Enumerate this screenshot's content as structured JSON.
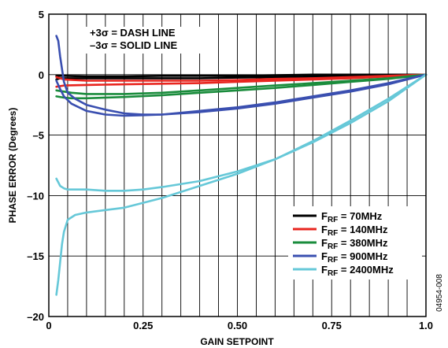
{
  "chart_data": {
    "type": "line",
    "xlabel": "GAIN SETPOINT",
    "ylabel": "PHASE ERROR (Degrees)",
    "xlim": [
      0,
      1.0
    ],
    "ylim": [
      -20,
      5
    ],
    "x_ticks": [
      {
        "v": 0,
        "label": "0"
      },
      {
        "v": 0.25,
        "label": "0.25"
      },
      {
        "v": 0.5,
        "label": "0.50"
      },
      {
        "v": 0.75,
        "label": "0.75"
      },
      {
        "v": 1.0,
        "label": "1.0"
      }
    ],
    "y_ticks": [
      {
        "v": 5,
        "label": "5"
      },
      {
        "v": 0,
        "label": "0"
      },
      {
        "v": -5,
        "label": "–5"
      },
      {
        "v": -10,
        "label": "–10"
      },
      {
        "v": -15,
        "label": "–15"
      },
      {
        "v": -20,
        "label": "–20"
      }
    ],
    "grid": true,
    "grid_x_step": 0.05,
    "grid_y_step": 5,
    "annotations": [
      "+3σ = DASH LINE",
      "–3σ = SOLID LINE"
    ],
    "legend_position": "lower-right",
    "figure_id": "04954-008",
    "series": [
      {
        "name": "F",
        "sub": "RF",
        "suffix": " = 70MHz",
        "color": "#000000",
        "curves": [
          {
            "x": [
              0.02,
              0.04,
              0.1,
              0.2,
              0.3,
              0.4,
              0.5,
              0.6,
              0.7,
              0.8,
              0.9,
              1.0
            ],
            "y": [
              -0.1,
              -0.1,
              -0.15,
              -0.15,
              -0.1,
              -0.1,
              -0.1,
              -0.05,
              0,
              0,
              0,
              0
            ]
          },
          {
            "x": [
              0.02,
              0.03,
              0.05,
              0.1,
              0.2,
              0.3,
              0.4,
              0.5,
              0.6,
              0.7,
              0.8,
              0.9,
              1.0
            ],
            "y": [
              -0.4,
              -0.3,
              -0.3,
              -0.3,
              -0.3,
              -0.3,
              -0.3,
              -0.25,
              -0.2,
              -0.15,
              -0.1,
              -0.05,
              0
            ]
          }
        ]
      },
      {
        "name": "F",
        "sub": "RF",
        "suffix": " = 140MHz",
        "color": "#e8251f",
        "curves": [
          {
            "x": [
              0.02,
              0.04,
              0.1,
              0.2,
              0.3,
              0.4,
              0.5,
              0.6,
              0.7,
              0.8,
              0.9,
              1.0
            ],
            "y": [
              -0.2,
              -0.4,
              -0.5,
              -0.5,
              -0.5,
              -0.5,
              -0.45,
              -0.35,
              -0.3,
              -0.2,
              -0.1,
              0
            ]
          },
          {
            "x": [
              0.02,
              0.04,
              0.1,
              0.2,
              0.3,
              0.4,
              0.5,
              0.6,
              0.7,
              0.8,
              0.9,
              1.0
            ],
            "y": [
              -1.0,
              -0.9,
              -0.85,
              -0.8,
              -0.75,
              -0.7,
              -0.6,
              -0.5,
              -0.4,
              -0.3,
              -0.15,
              0
            ]
          }
        ]
      },
      {
        "name": "F",
        "sub": "RF",
        "suffix": " = 380MHz",
        "color": "#1a8c3c",
        "curves": [
          {
            "x": [
              0.02,
              0.04,
              0.06,
              0.1,
              0.2,
              0.3,
              0.4,
              0.5,
              0.6,
              0.7,
              0.8,
              0.9,
              1.0
            ],
            "y": [
              -1.3,
              -1.4,
              -1.5,
              -1.6,
              -1.6,
              -1.5,
              -1.3,
              -1.1,
              -0.9,
              -0.7,
              -0.5,
              -0.3,
              0
            ]
          },
          {
            "x": [
              0.02,
              0.04,
              0.06,
              0.1,
              0.2,
              0.3,
              0.4,
              0.5,
              0.6,
              0.7,
              0.8,
              0.9,
              1.0
            ],
            "y": [
              -1.8,
              -1.9,
              -1.95,
              -1.95,
              -1.85,
              -1.7,
              -1.5,
              -1.3,
              -1.1,
              -0.85,
              -0.6,
              -0.35,
              0
            ]
          }
        ]
      },
      {
        "name": "F",
        "sub": "RF",
        "suffix": " = 900MHz",
        "color": "#3a4fb0",
        "curves": [
          {
            "x": [
              0.02,
              0.025,
              0.03,
              0.04,
              0.05,
              0.07,
              0.1,
              0.15,
              0.2,
              0.25,
              0.3,
              0.4,
              0.5,
              0.6,
              0.7,
              0.8,
              0.9,
              1.0
            ],
            "y": [
              3.2,
              2.8,
              1.5,
              -0.6,
              -1.5,
              -2.0,
              -2.5,
              -2.9,
              -3.2,
              -3.3,
              -3.3,
              -3.1,
              -2.8,
              -2.4,
              -1.9,
              -1.4,
              -0.8,
              0
            ]
          },
          {
            "x": [
              0.02,
              0.03,
              0.04,
              0.06,
              0.1,
              0.15,
              0.2,
              0.25,
              0.3,
              0.4,
              0.5,
              0.6,
              0.7,
              0.8,
              0.9,
              1.0
            ],
            "y": [
              -0.5,
              -1.2,
              -1.8,
              -2.4,
              -3.0,
              -3.3,
              -3.4,
              -3.35,
              -3.3,
              -3.0,
              -2.7,
              -2.3,
              -1.8,
              -1.3,
              -0.7,
              0
            ]
          }
        ]
      },
      {
        "name": "F",
        "sub": "RF",
        "suffix": " = 2400MHz",
        "color": "#66c8d8",
        "curves": [
          {
            "x": [
              0.02,
              0.03,
              0.04,
              0.05,
              0.07,
              0.1,
              0.15,
              0.2,
              0.25,
              0.3,
              0.4,
              0.5,
              0.6,
              0.7,
              0.8,
              0.9,
              1.0
            ],
            "y": [
              -8.6,
              -9.2,
              -9.4,
              -9.5,
              -9.5,
              -9.5,
              -9.6,
              -9.6,
              -9.5,
              -9.3,
              -8.8,
              -8.0,
              -7.0,
              -5.6,
              -4.0,
              -2.2,
              0
            ]
          },
          {
            "x": [
              0.02,
              0.025,
              0.03,
              0.035,
              0.04,
              0.05,
              0.07,
              0.1,
              0.15,
              0.2,
              0.25,
              0.3,
              0.4,
              0.5,
              0.6,
              0.7,
              0.8,
              0.9,
              1.0
            ],
            "y": [
              -18.2,
              -17.0,
              -15.5,
              -14.0,
              -13.0,
              -12.0,
              -11.6,
              -11.4,
              -11.2,
              -11.0,
              -10.6,
              -10.2,
              -9.2,
              -8.2,
              -7.0,
              -5.5,
              -3.8,
              -2.0,
              0
            ]
          }
        ]
      }
    ]
  }
}
